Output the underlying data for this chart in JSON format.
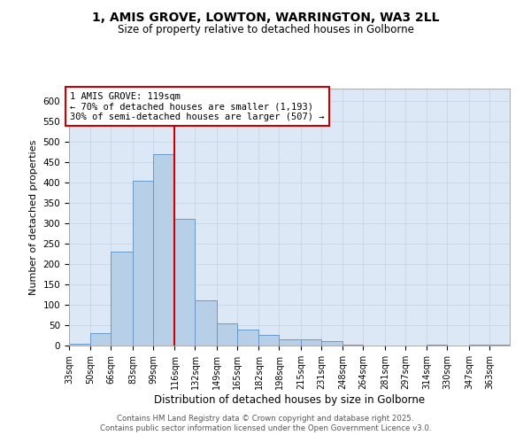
{
  "title_line1": "1, AMIS GROVE, LOWTON, WARRINGTON, WA3 2LL",
  "title_line2": "Size of property relative to detached houses in Golborne",
  "xlabel": "Distribution of detached houses by size in Golborne",
  "ylabel": "Number of detached properties",
  "bar_labels": [
    "33sqm",
    "50sqm",
    "66sqm",
    "83sqm",
    "99sqm",
    "116sqm",
    "132sqm",
    "149sqm",
    "165sqm",
    "182sqm",
    "198sqm",
    "215sqm",
    "231sqm",
    "248sqm",
    "264sqm",
    "281sqm",
    "297sqm",
    "314sqm",
    "330sqm",
    "347sqm",
    "363sqm"
  ],
  "bar_values": [
    5,
    30,
    230,
    405,
    470,
    310,
    110,
    55,
    40,
    25,
    15,
    15,
    10,
    3,
    0,
    0,
    0,
    3,
    0,
    3,
    3
  ],
  "bar_edges": [
    33,
    50,
    66,
    83,
    99,
    116,
    132,
    149,
    165,
    182,
    198,
    215,
    231,
    248,
    264,
    281,
    297,
    314,
    330,
    347,
    363,
    379
  ],
  "bar_color": "#b8cfe8",
  "bar_edgecolor": "#6699cc",
  "vline_x": 116,
  "vline_color": "#cc0000",
  "ylim": [
    0,
    630
  ],
  "yticks": [
    0,
    50,
    100,
    150,
    200,
    250,
    300,
    350,
    400,
    450,
    500,
    550,
    600
  ],
  "annotation_title": "1 AMIS GROVE: 119sqm",
  "annotation_line1": "← 70% of detached houses are smaller (1,193)",
  "annotation_line2": "30% of semi-detached houses are larger (507) →",
  "annotation_box_color": "#ffffff",
  "annotation_box_edgecolor": "#cc0000",
  "grid_color": "#c8d4e3",
  "bg_color": "#dce8f5",
  "footer_line1": "Contains HM Land Registry data © Crown copyright and database right 2025.",
  "footer_line2": "Contains public sector information licensed under the Open Government Licence v3.0."
}
